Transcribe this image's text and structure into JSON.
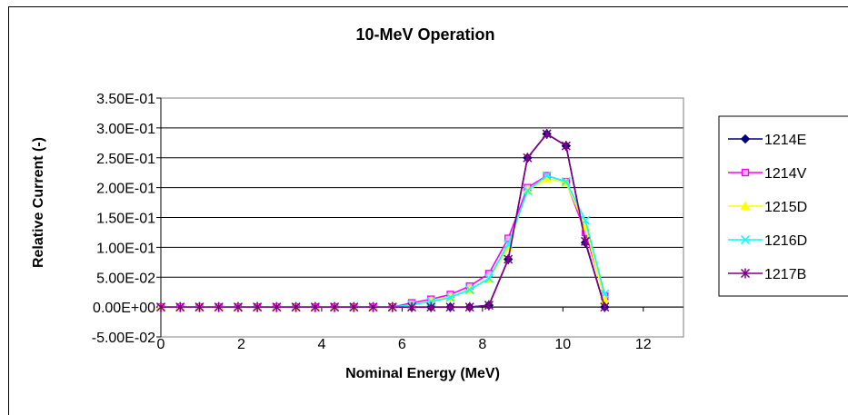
{
  "chart_data": {
    "type": "line",
    "title": "10-MeV Operation",
    "xlabel": "Nominal Energy (MeV)",
    "ylabel": "Relative Current (-)",
    "xlim": [
      0,
      13
    ],
    "ylim": [
      -0.05,
      0.35
    ],
    "xticks": [
      0,
      2,
      4,
      6,
      8,
      10,
      12
    ],
    "xtick_labels": [
      "0",
      "2",
      "4",
      "6",
      "8",
      "10",
      "12"
    ],
    "yticks": [
      -0.05,
      0,
      0.05,
      0.1,
      0.15,
      0.2,
      0.25,
      0.3,
      0.35
    ],
    "ytick_labels": [
      "-5.00E-02",
      "0.00E+00",
      "5.00E-02",
      "1.00E-01",
      "1.50E-01",
      "2.00E-01",
      "2.50E-01",
      "3.00E-01",
      "3.50E-01"
    ],
    "grid": "horizontal",
    "legend_position": "right",
    "x": [
      0,
      0.48,
      0.96,
      1.44,
      1.92,
      2.4,
      2.88,
      3.36,
      3.84,
      4.32,
      4.8,
      5.28,
      5.76,
      6.24,
      6.72,
      7.2,
      7.68,
      8.16,
      8.64,
      9.12,
      9.6,
      10.08,
      10.56,
      11.04
    ],
    "series": [
      {
        "name": "1214E",
        "color": "#000080",
        "marker": "diamond",
        "values": [
          0,
          0,
          0,
          0,
          0,
          0,
          0,
          0,
          0,
          0,
          0,
          0,
          0,
          0,
          0,
          0,
          0,
          0.003,
          0.08,
          0.25,
          0.29,
          0.27,
          0.108,
          0
        ]
      },
      {
        "name": "1214V",
        "color": "#ff00ff",
        "marker": "square",
        "values": [
          0,
          0,
          0,
          0,
          0,
          0,
          0,
          0,
          0,
          0,
          0,
          0,
          0,
          0.007,
          0.013,
          0.021,
          0.035,
          0.056,
          0.115,
          0.2,
          0.22,
          0.21,
          0.125,
          0.018
        ]
      },
      {
        "name": "1215D",
        "color": "#ffff00",
        "marker": "triangle",
        "values": [
          0,
          0,
          0,
          0,
          0,
          0,
          0,
          0,
          0,
          0,
          0,
          0,
          0,
          0.003,
          0.01,
          0.017,
          0.029,
          0.047,
          0.1,
          0.195,
          0.215,
          0.208,
          0.135,
          0.012
        ]
      },
      {
        "name": "1216D",
        "color": "#00ffff",
        "marker": "x",
        "values": [
          0,
          0,
          0,
          0,
          0,
          0,
          0,
          0,
          0,
          0,
          0,
          0,
          0,
          0.004,
          0.009,
          0.016,
          0.029,
          0.048,
          0.105,
          0.195,
          0.22,
          0.21,
          0.145,
          0.022
        ]
      },
      {
        "name": "1217B",
        "color": "#800080",
        "marker": "star",
        "values": [
          0,
          0,
          0,
          0,
          0,
          0,
          0,
          0,
          0,
          0,
          0,
          0,
          0,
          0,
          0,
          0,
          0,
          0.003,
          0.08,
          0.25,
          0.29,
          0.27,
          0.11,
          0
        ]
      }
    ]
  }
}
